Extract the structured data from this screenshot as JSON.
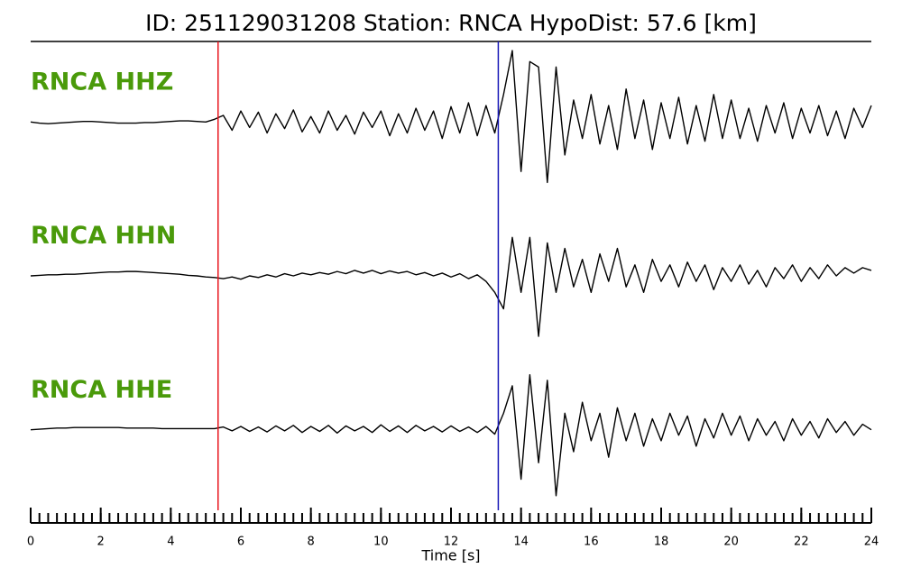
{
  "chart_data": {
    "type": "line",
    "title": "ID: 251129031208   Station: RNCA   HypoDist:    57.6 [km]",
    "x_label": "Time [s]",
    "xlim": [
      0,
      24
    ],
    "xticks": [
      0,
      2,
      4,
      6,
      8,
      10,
      12,
      14,
      16,
      18,
      20,
      22,
      24
    ],
    "xminor_step": 0.25,
    "ylim": [
      -1.4,
      1.4
    ],
    "x": [
      0,
      0.25,
      0.5,
      0.75,
      1,
      1.25,
      1.5,
      1.75,
      2,
      2.25,
      2.5,
      2.75,
      3,
      3.25,
      3.5,
      3.75,
      4,
      4.25,
      4.5,
      4.75,
      5,
      5.25,
      5.5,
      5.75,
      6,
      6.25,
      6.5,
      6.75,
      7,
      7.25,
      7.5,
      7.75,
      8,
      8.25,
      8.5,
      8.75,
      9,
      9.25,
      9.5,
      9.75,
      10,
      10.25,
      10.5,
      10.75,
      11,
      11.25,
      11.5,
      11.75,
      12,
      12.25,
      12.5,
      12.75,
      13,
      13.25,
      13.5,
      13.75,
      14,
      14.25,
      14.5,
      14.75,
      15,
      15.25,
      15.5,
      15.75,
      16,
      16.25,
      16.5,
      16.75,
      17,
      17.25,
      17.5,
      17.75,
      18,
      18.25,
      18.5,
      18.75,
      19,
      19.25,
      19.5,
      19.75,
      20,
      20.25,
      20.5,
      20.75,
      21,
      21.25,
      21.5,
      21.75,
      22,
      22.25,
      22.5,
      22.75,
      23,
      23.25,
      23.5,
      23.75,
      24
    ],
    "series": [
      {
        "name": "RNCA HHZ",
        "color": "#000000",
        "values": [
          0,
          -0.02,
          -0.03,
          -0.02,
          -0.01,
          0,
          0.01,
          0.01,
          0,
          -0.01,
          -0.02,
          -0.02,
          -0.02,
          -0.01,
          -0.01,
          0,
          0.01,
          0.02,
          0.02,
          0.01,
          0,
          0.05,
          0.12,
          -0.15,
          0.2,
          -0.1,
          0.18,
          -0.2,
          0.15,
          -0.12,
          0.22,
          -0.18,
          0.1,
          -0.2,
          0.2,
          -0.15,
          0.12,
          -0.22,
          0.18,
          -0.1,
          0.2,
          -0.25,
          0.15,
          -0.2,
          0.25,
          -0.15,
          0.2,
          -0.3,
          0.28,
          -0.2,
          0.35,
          -0.25,
          0.3,
          -0.2,
          0.5,
          1.3,
          -0.9,
          1.1,
          1.0,
          -1.1,
          1.0,
          -0.6,
          0.4,
          -0.3,
          0.5,
          -0.4,
          0.3,
          -0.5,
          0.6,
          -0.3,
          0.4,
          -0.5,
          0.35,
          -0.3,
          0.45,
          -0.4,
          0.3,
          -0.35,
          0.5,
          -0.3,
          0.4,
          -0.3,
          0.25,
          -0.35,
          0.3,
          -0.2,
          0.35,
          -0.3,
          0.25,
          -0.2,
          0.3,
          -0.25,
          0.2,
          -0.3,
          0.25,
          -0.1,
          0.3
        ]
      },
      {
        "name": "RNCA HHN",
        "color": "#000000",
        "values": [
          0,
          0.01,
          0.02,
          0.02,
          0.03,
          0.03,
          0.04,
          0.05,
          0.06,
          0.07,
          0.07,
          0.08,
          0.08,
          0.07,
          0.06,
          0.05,
          0.04,
          0.03,
          0.01,
          0,
          -0.02,
          -0.03,
          -0.05,
          -0.02,
          -0.06,
          0,
          -0.03,
          0.02,
          -0.02,
          0.04,
          0,
          0.05,
          0.02,
          0.06,
          0.03,
          0.08,
          0.04,
          0.1,
          0.05,
          0.1,
          0.04,
          0.09,
          0.05,
          0.08,
          0.02,
          0.06,
          0,
          0.05,
          -0.02,
          0.04,
          -0.05,
          0.02,
          -0.1,
          -0.3,
          -0.6,
          0.7,
          -0.3,
          0.7,
          -1.1,
          0.6,
          -0.3,
          0.5,
          -0.2,
          0.3,
          -0.3,
          0.4,
          -0.1,
          0.5,
          -0.2,
          0.2,
          -0.3,
          0.3,
          -0.1,
          0.2,
          -0.2,
          0.25,
          -0.1,
          0.2,
          -0.25,
          0.15,
          -0.1,
          0.2,
          -0.15,
          0.1,
          -0.2,
          0.15,
          -0.05,
          0.2,
          -0.1,
          0.15,
          -0.05,
          0.2,
          0,
          0.15,
          0.05,
          0.15,
          0.1
        ]
      },
      {
        "name": "RNCA HHE",
        "color": "#000000",
        "values": [
          0,
          0.01,
          0.02,
          0.03,
          0.03,
          0.04,
          0.04,
          0.04,
          0.04,
          0.04,
          0.04,
          0.03,
          0.03,
          0.03,
          0.03,
          0.02,
          0.02,
          0.02,
          0.02,
          0.02,
          0.02,
          0.02,
          0.05,
          -0.02,
          0.06,
          -0.03,
          0.05,
          -0.04,
          0.07,
          -0.02,
          0.08,
          -0.05,
          0.06,
          -0.03,
          0.08,
          -0.06,
          0.07,
          -0.02,
          0.06,
          -0.05,
          0.09,
          -0.03,
          0.07,
          -0.05,
          0.08,
          -0.02,
          0.06,
          -0.04,
          0.07,
          -0.03,
          0.05,
          -0.05,
          0.06,
          -0.08,
          0.3,
          0.8,
          -0.9,
          1.0,
          -0.6,
          0.9,
          -1.2,
          0.3,
          -0.4,
          0.5,
          -0.2,
          0.3,
          -0.5,
          0.4,
          -0.2,
          0.3,
          -0.3,
          0.2,
          -0.2,
          0.3,
          -0.1,
          0.25,
          -0.3,
          0.2,
          -0.15,
          0.3,
          -0.1,
          0.25,
          -0.2,
          0.2,
          -0.1,
          0.15,
          -0.2,
          0.2,
          -0.1,
          0.15,
          -0.15,
          0.2,
          -0.05,
          0.15,
          -0.1,
          0.1,
          0
        ]
      }
    ],
    "markers": [
      {
        "x": 5.35,
        "color": "#e8141c"
      },
      {
        "x": 13.35,
        "color": "#1a1ab8"
      }
    ]
  }
}
